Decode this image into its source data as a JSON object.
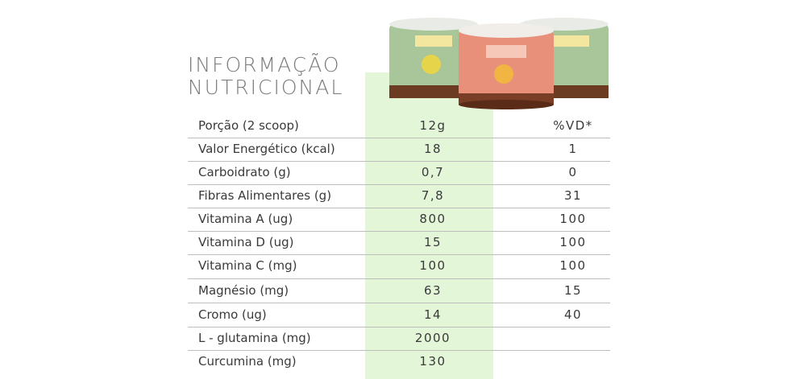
{
  "header": {
    "title": [
      "INFORMAÇÃO",
      "NUTRICIONAL"
    ]
  },
  "table": {
    "rows": [
      [
        "Porção (2 scoop)",
        "12g",
        "%VD*"
      ],
      [
        "Valor Energético (kcal)",
        "18",
        "1"
      ],
      [
        "Carboidrato (g)",
        "0,7",
        "0"
      ],
      [
        "Fibras Alimentares (g)",
        "7,8",
        "31"
      ],
      [
        "Vitamina A (ug)",
        "800",
        "100"
      ],
      [
        "Vitamina D (ug)",
        "15",
        "100"
      ],
      [
        "Vitamina C (mg)",
        "100",
        "100"
      ],
      [
        "Magnésio (mg)",
        "63",
        "15"
      ],
      [
        "Cromo (ug)",
        "14",
        "40"
      ],
      [
        "L - glutamina (mg)",
        "2000"
      ],
      [
        "Curcumina (mg)",
        "130"
      ]
    ]
  }
}
